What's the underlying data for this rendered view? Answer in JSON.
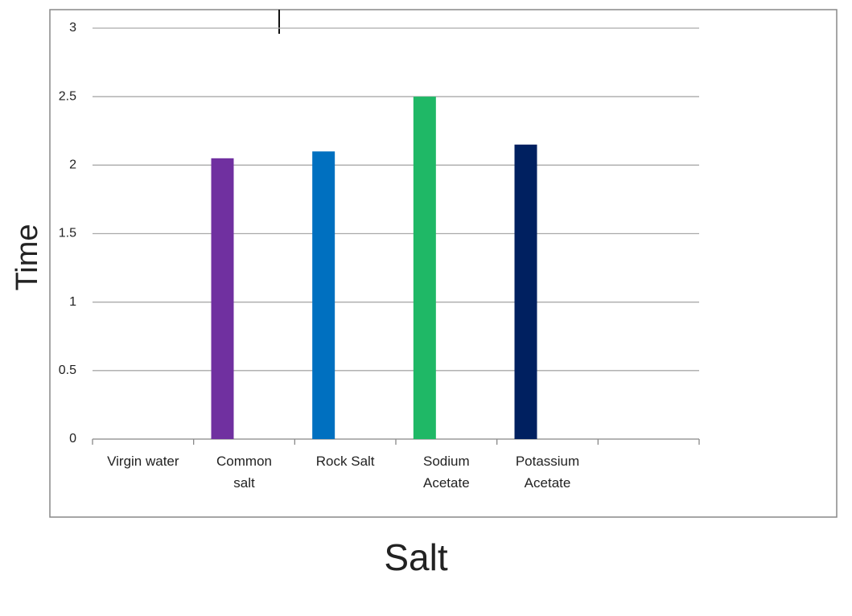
{
  "chart_data": {
    "type": "bar",
    "x_label": "Salt",
    "y_label": "Time",
    "categories": [
      "Virgin water",
      "Common salt",
      "Rock Salt",
      "Sodium Acetate",
      "Potassium Acetate",
      null
    ],
    "values": [
      null,
      2.05,
      2.1,
      2.5,
      2.15,
      null
    ],
    "colors": [
      "#7030a0",
      "#7030a0",
      "#0070c0",
      "#1fb866",
      "#002060",
      "#002060"
    ],
    "ylim": [
      0,
      3
    ],
    "yticks": [
      0,
      0.5,
      1,
      1.5,
      2,
      2.5,
      3
    ],
    "grid": true
  }
}
